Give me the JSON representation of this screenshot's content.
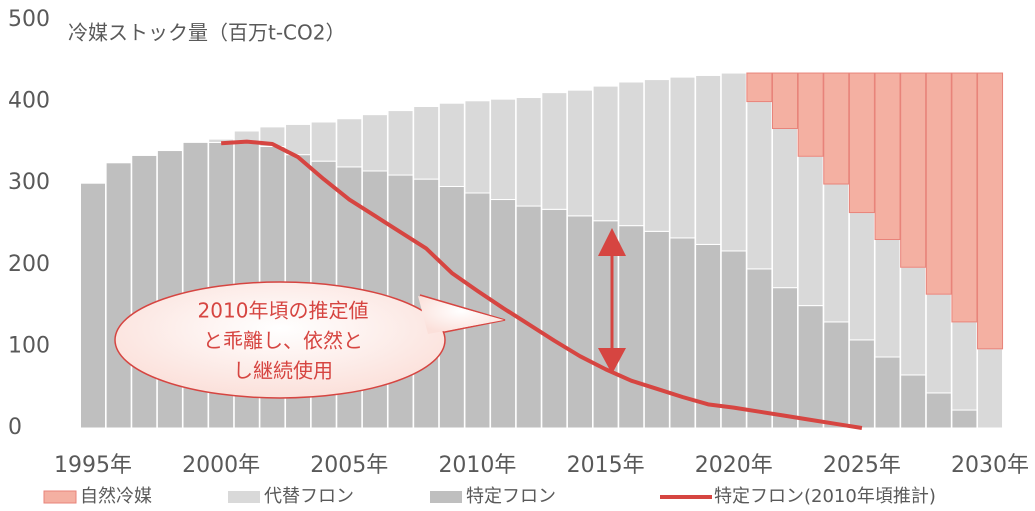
{
  "chart_data": {
    "type": "bar",
    "stacked": true,
    "title": "冷媒ストック量（百万t-CO2）",
    "categories": [
      "1995年",
      null,
      null,
      null,
      null,
      "2000年",
      null,
      null,
      null,
      null,
      "2005年",
      null,
      null,
      null,
      null,
      "2010年",
      null,
      null,
      null,
      null,
      "2015年",
      null,
      null,
      null,
      null,
      "2020年",
      null,
      null,
      null,
      null,
      "2025年",
      null,
      null,
      null,
      null,
      "2030年"
    ],
    "series": [
      {
        "name": "自然冷媒",
        "color": "#f4b0a2",
        "values": [
          0,
          0,
          0,
          0,
          0,
          0,
          0,
          0,
          0,
          0,
          0,
          0,
          0,
          0,
          0,
          0,
          0,
          0,
          0,
          0,
          0,
          0,
          0,
          0,
          0,
          0,
          35,
          68,
          102,
          136,
          171,
          204,
          238,
          271,
          305,
          338
        ]
      },
      {
        "name": "代替フロン",
        "color": "#d9d9d9",
        "values": [
          0,
          0,
          0,
          0,
          0,
          4,
          14,
          24,
          37,
          48,
          59,
          69,
          79,
          89,
          102,
          113,
          123,
          133,
          143,
          154,
          165,
          176,
          186,
          197,
          207,
          218,
          205,
          195,
          183,
          169,
          156,
          144,
          132,
          121,
          108,
          97
        ]
      },
      {
        "name": "特定フロン",
        "color": "#bfbfbf",
        "values": [
          300,
          325,
          334,
          340,
          350,
          350,
          350,
          345,
          335,
          327,
          320,
          315,
          310,
          305,
          296,
          288,
          280,
          272,
          268,
          260,
          254,
          248,
          241,
          233,
          225,
          217,
          195,
          172,
          150,
          130,
          108,
          87,
          65,
          43,
          22,
          0
        ]
      },
      {
        "name": "特定フロン(2010年頃推計)",
        "type": "line",
        "color": "#d64541",
        "values": [
          null,
          null,
          null,
          null,
          null,
          349,
          351,
          348,
          332,
          305,
          280,
          260,
          240,
          220,
          190,
          168,
          147,
          127,
          107,
          88,
          72,
          58,
          48,
          38,
          29,
          25,
          20,
          15,
          10,
          5,
          0,
          null,
          null,
          null,
          null,
          null
        ]
      }
    ],
    "ylim": [
      0,
      500
    ],
    "yticks": [
      0,
      100,
      200,
      300,
      400,
      500
    ],
    "annotation": [
      "2010年頃の推定値",
      "と乖離し、依然と",
      "し継続使用"
    ],
    "legend": "bottom"
  }
}
